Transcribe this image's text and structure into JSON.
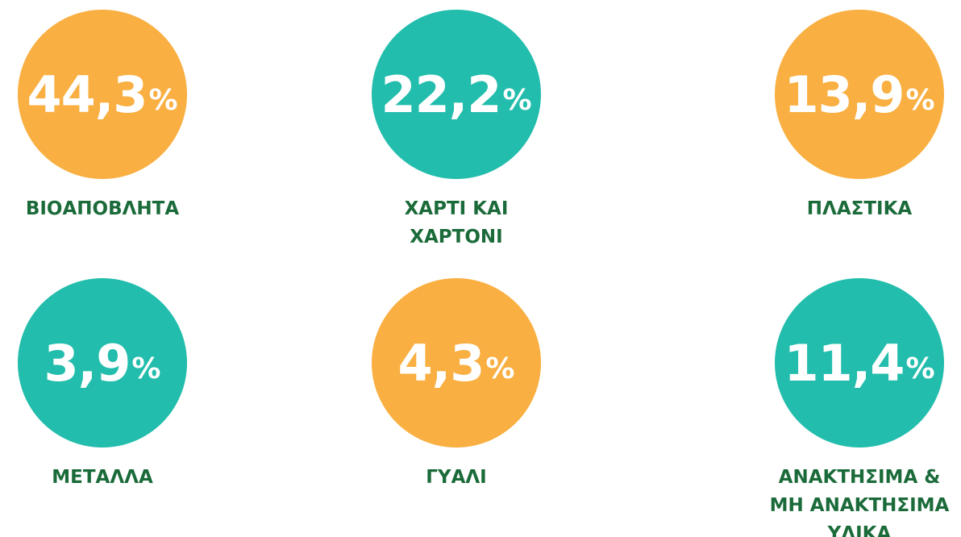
{
  "items": [
    {
      "value": "44,3",
      "unit": "%",
      "color": "#F9AF41",
      "label": [
        "ΒΙΟΑΠΟΒΛΗΤΑ"
      ]
    },
    {
      "value": "22,2",
      "unit": "%",
      "color": "#22BDAC",
      "label": [
        "ΧΑΡΤΙ ΚΑΙ",
        "ΧΑΡΤΟΝΙ"
      ]
    },
    {
      "value": "13,9",
      "unit": "%",
      "color": "#F9AF41",
      "label": [
        "ΠΛΑΣΤΙΚΑ"
      ]
    },
    {
      "value": "3,9",
      "unit": "%",
      "color": "#22BDAC",
      "label": [
        "ΜΕΤΑΛΛΑ"
      ]
    },
    {
      "value": "4,3",
      "unit": "%",
      "color": "#F9AF41",
      "label": [
        "ΓΥΑΛΙ"
      ]
    },
    {
      "value": "11,4",
      "unit": "%",
      "color": "#22BDAC",
      "label": [
        "ΑΝΑΚΤΗΣΙΜΑ &",
        "ΜΗ ΑΝΑΚΤΗΣΙΜΑ",
        "ΥΛΙΚΑ"
      ]
    }
  ]
}
